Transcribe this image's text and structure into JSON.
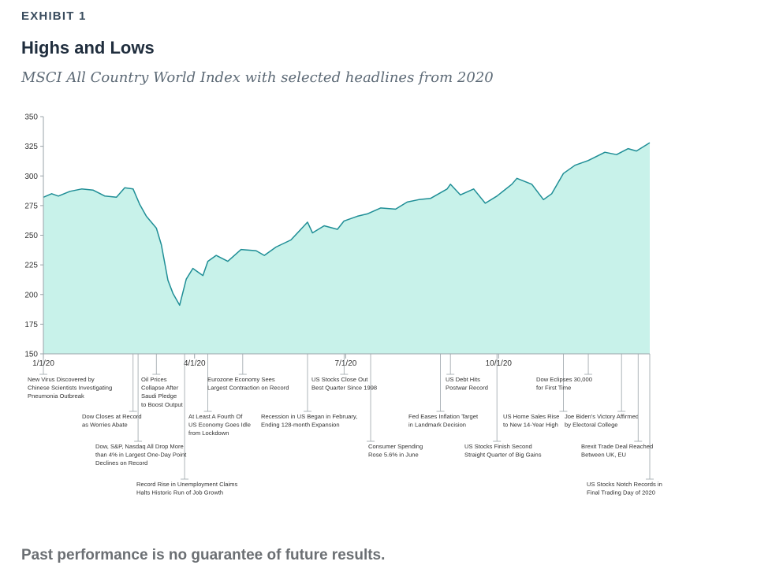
{
  "header": {
    "exhibit": "EXHIBIT 1",
    "title": "Highs and Lows",
    "subtitle": "MSCI All Country World Index with selected headlines from 2020"
  },
  "footer": {
    "note": "Past performance is no guarantee of future results."
  },
  "colors": {
    "line": "#1f8e96",
    "fill": "#c8f2ea",
    "axis": "#9aa3a8"
  },
  "chart_data": {
    "type": "area",
    "xlabel": "",
    "ylabel": "",
    "ylim": [
      150,
      350
    ],
    "yticks": [
      150,
      175,
      200,
      225,
      250,
      275,
      300,
      325,
      350
    ],
    "xlim": [
      "2020-01-01",
      "2020-12-31"
    ],
    "xticks": [
      {
        "date": "2020-01-01",
        "label": "1/1/20"
      },
      {
        "date": "2020-04-01",
        "label": "4/1/20"
      },
      {
        "date": "2020-07-01",
        "label": "7/1/20"
      },
      {
        "date": "2020-10-01",
        "label": "10/1/20"
      }
    ],
    "grid": false,
    "series": [
      {
        "points": [
          [
            "2020-01-01",
            282
          ],
          [
            "2020-01-06",
            285
          ],
          [
            "2020-01-10",
            283
          ],
          [
            "2020-01-17",
            287
          ],
          [
            "2020-01-24",
            289
          ],
          [
            "2020-01-31",
            288
          ],
          [
            "2020-02-07",
            283
          ],
          [
            "2020-02-14",
            282
          ],
          [
            "2020-02-19",
            290
          ],
          [
            "2020-02-24",
            289
          ],
          [
            "2020-02-28",
            276
          ],
          [
            "2020-03-03",
            266
          ],
          [
            "2020-03-09",
            256
          ],
          [
            "2020-03-12",
            242
          ],
          [
            "2020-03-16",
            212
          ],
          [
            "2020-03-19",
            201
          ],
          [
            "2020-03-23",
            191
          ],
          [
            "2020-03-27",
            213
          ],
          [
            "2020-03-31",
            222
          ],
          [
            "2020-04-06",
            216
          ],
          [
            "2020-04-09",
            228
          ],
          [
            "2020-04-14",
            233
          ],
          [
            "2020-04-21",
            228
          ],
          [
            "2020-04-29",
            238
          ],
          [
            "2020-05-08",
            237
          ],
          [
            "2020-05-13",
            233
          ],
          [
            "2020-05-20",
            240
          ],
          [
            "2020-05-29",
            246
          ],
          [
            "2020-06-08",
            261
          ],
          [
            "2020-06-11",
            252
          ],
          [
            "2020-06-18",
            258
          ],
          [
            "2020-06-26",
            255
          ],
          [
            "2020-06-30",
            262
          ],
          [
            "2020-07-08",
            266
          ],
          [
            "2020-07-14",
            268
          ],
          [
            "2020-07-22",
            273
          ],
          [
            "2020-07-31",
            272
          ],
          [
            "2020-08-07",
            278
          ],
          [
            "2020-08-14",
            280
          ],
          [
            "2020-08-21",
            281
          ],
          [
            "2020-08-31",
            289
          ],
          [
            "2020-09-02",
            293
          ],
          [
            "2020-09-08",
            284
          ],
          [
            "2020-09-16",
            289
          ],
          [
            "2020-09-23",
            277
          ],
          [
            "2020-09-30",
            283
          ],
          [
            "2020-10-09",
            293
          ],
          [
            "2020-10-12",
            298
          ],
          [
            "2020-10-21",
            293
          ],
          [
            "2020-10-28",
            280
          ],
          [
            "2020-11-02",
            285
          ],
          [
            "2020-11-09",
            302
          ],
          [
            "2020-11-16",
            309
          ],
          [
            "2020-11-24",
            313
          ],
          [
            "2020-12-04",
            320
          ],
          [
            "2020-12-11",
            318
          ],
          [
            "2020-12-18",
            323
          ],
          [
            "2020-12-23",
            321
          ],
          [
            "2020-12-31",
            328
          ]
        ]
      }
    ],
    "annotations": [
      {
        "date": "2020-01-01",
        "lines": [
          "New Virus Discovered by",
          "Chinese Scientists Investigating",
          "Pneumonia Outbreak"
        ]
      },
      {
        "date": "2020-02-24",
        "lines": [
          "Dow Closes at Record",
          "as Worries Abate"
        ]
      },
      {
        "date": "2020-02-27",
        "lines": [
          "Dow, S&P, Nasdaq All Drop More",
          "than 4% in Largest One-Day Point",
          "Declines on Record"
        ]
      },
      {
        "date": "2020-03-09",
        "lines": [
          "Oil Prices",
          "Collapse After",
          "Saudi Pledge",
          "to Boost Output"
        ]
      },
      {
        "date": "2020-03-26",
        "lines": [
          "Record Rise in Unemployment Claims",
          "Halts Historic Run of Job Growth"
        ]
      },
      {
        "date": "2020-04-09",
        "lines": [
          "At Least A Fourth Of",
          "US Economy Goes Idle",
          "from Lockdown"
        ]
      },
      {
        "date": "2020-04-30",
        "lines": [
          "Eurozone Economy Sees",
          "Largest Contraction on Record"
        ]
      },
      {
        "date": "2020-06-08",
        "lines": [
          "Recession in US Began in February,",
          "Ending 128-month Expansion"
        ]
      },
      {
        "date": "2020-06-30",
        "lines": [
          "US Stocks Close Out",
          "Best Quarter Since 1998"
        ]
      },
      {
        "date": "2020-07-16",
        "lines": [
          "Consumer Spending",
          "Rose 5.6% in June"
        ]
      },
      {
        "date": "2020-08-27",
        "lines": [
          "Fed Eases Inflation Target",
          "in Landmark Decision"
        ]
      },
      {
        "date": "2020-09-02",
        "lines": [
          "US Debt Hits",
          "Postwar Record"
        ]
      },
      {
        "date": "2020-09-30",
        "lines": [
          "US Stocks Finish Second",
          "Straight Quarter of Big Gains"
        ]
      },
      {
        "date": "2020-11-09",
        "lines": [
          "US Home Sales Rise",
          "to New 14-Year High"
        ]
      },
      {
        "date": "2020-11-24",
        "lines": [
          "Dow Eclipses 30,000",
          "for First Time"
        ]
      },
      {
        "date": "2020-12-14",
        "lines": [
          "Joe Biden's Victory Affirmed",
          "by Electoral College"
        ]
      },
      {
        "date": "2020-12-24",
        "lines": [
          "Brexit Trade Deal Reached",
          "Between UK, EU"
        ]
      },
      {
        "date": "2020-12-31",
        "lines": [
          "US Stocks Notch Records in",
          "Final Trading Day of 2020"
        ]
      }
    ]
  }
}
